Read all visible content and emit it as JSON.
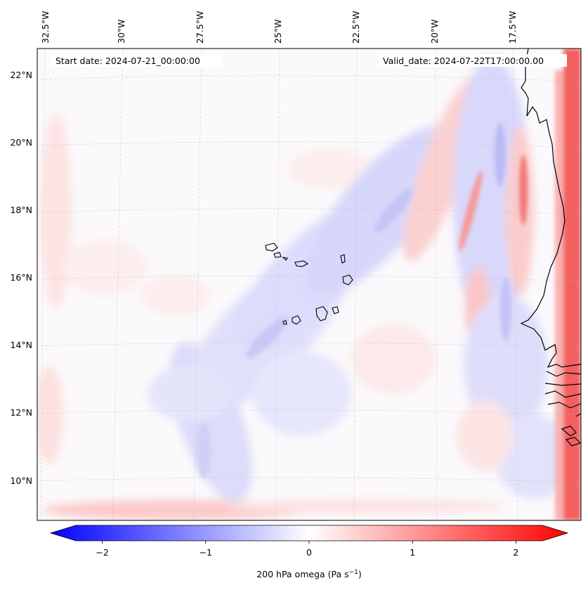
{
  "header": {
    "start_date": "Start date: 2024-07-21_00:00:00",
    "valid_date": "Valid_date: 2024-07-22T17:00:00.00"
  },
  "axes": {
    "lon_labels": [
      "32.5°W",
      "30°W",
      "27.5°W",
      "25°W",
      "22.5°W",
      "20°W",
      "17.5°W"
    ],
    "lat_labels": [
      "22°N",
      "20°N",
      "18°N",
      "16°N",
      "14°N",
      "12°N",
      "10°N"
    ]
  },
  "colorbar": {
    "ticks": [
      "−2",
      "−1",
      "0",
      "1",
      "2"
    ],
    "tick_values": [
      -2,
      -1,
      0,
      1,
      2
    ],
    "range": [
      -2.5,
      2.5
    ],
    "label_main": "200 hPa omega (Pa s",
    "label_sup": "−1",
    "label_end": ")",
    "colormap": "bwr",
    "neg_color": "#0000ff",
    "zero_color": "#ffffff",
    "pos_color": "#ff0000"
  },
  "chart_data": {
    "type": "heatmap",
    "variable": "200 hPa omega",
    "units": "Pa s^-1",
    "value_range": [
      -2.5,
      2.5
    ],
    "lon_ticks": [
      -32.5,
      -30,
      -27.5,
      -25,
      -22.5,
      -20,
      -17.5
    ],
    "lat_ticks": [
      22,
      20,
      18,
      16,
      14,
      12,
      10
    ]
  }
}
